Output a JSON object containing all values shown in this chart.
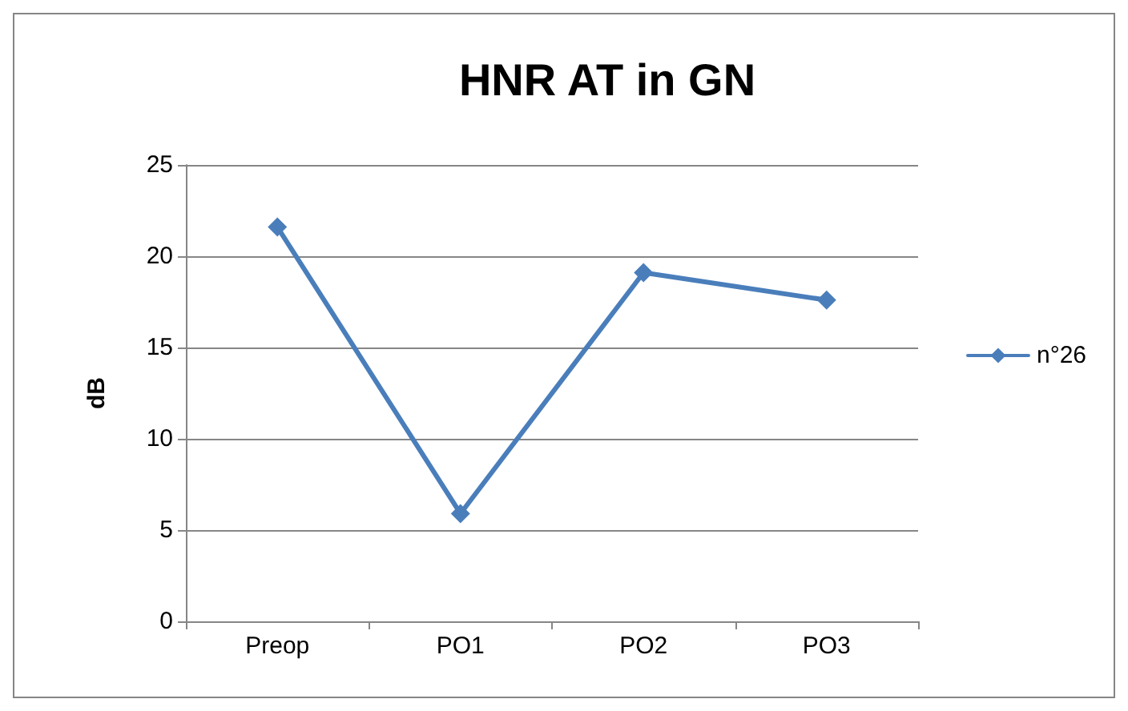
{
  "chart_data": {
    "type": "line",
    "title": "HNR AT in GN",
    "ylabel": "dB",
    "categories": [
      "Preop",
      "PO1",
      "PO2",
      "PO3"
    ],
    "series": [
      {
        "name": "n°26",
        "color": "#4a7ebb",
        "values": [
          21.6,
          5.9,
          19.1,
          17.6
        ]
      }
    ],
    "ylim": [
      0,
      25
    ],
    "yticks": [
      0,
      5,
      10,
      15,
      20,
      25
    ],
    "grid": "y",
    "legend": "right",
    "marker": "diamond",
    "line_style": "solid"
  }
}
